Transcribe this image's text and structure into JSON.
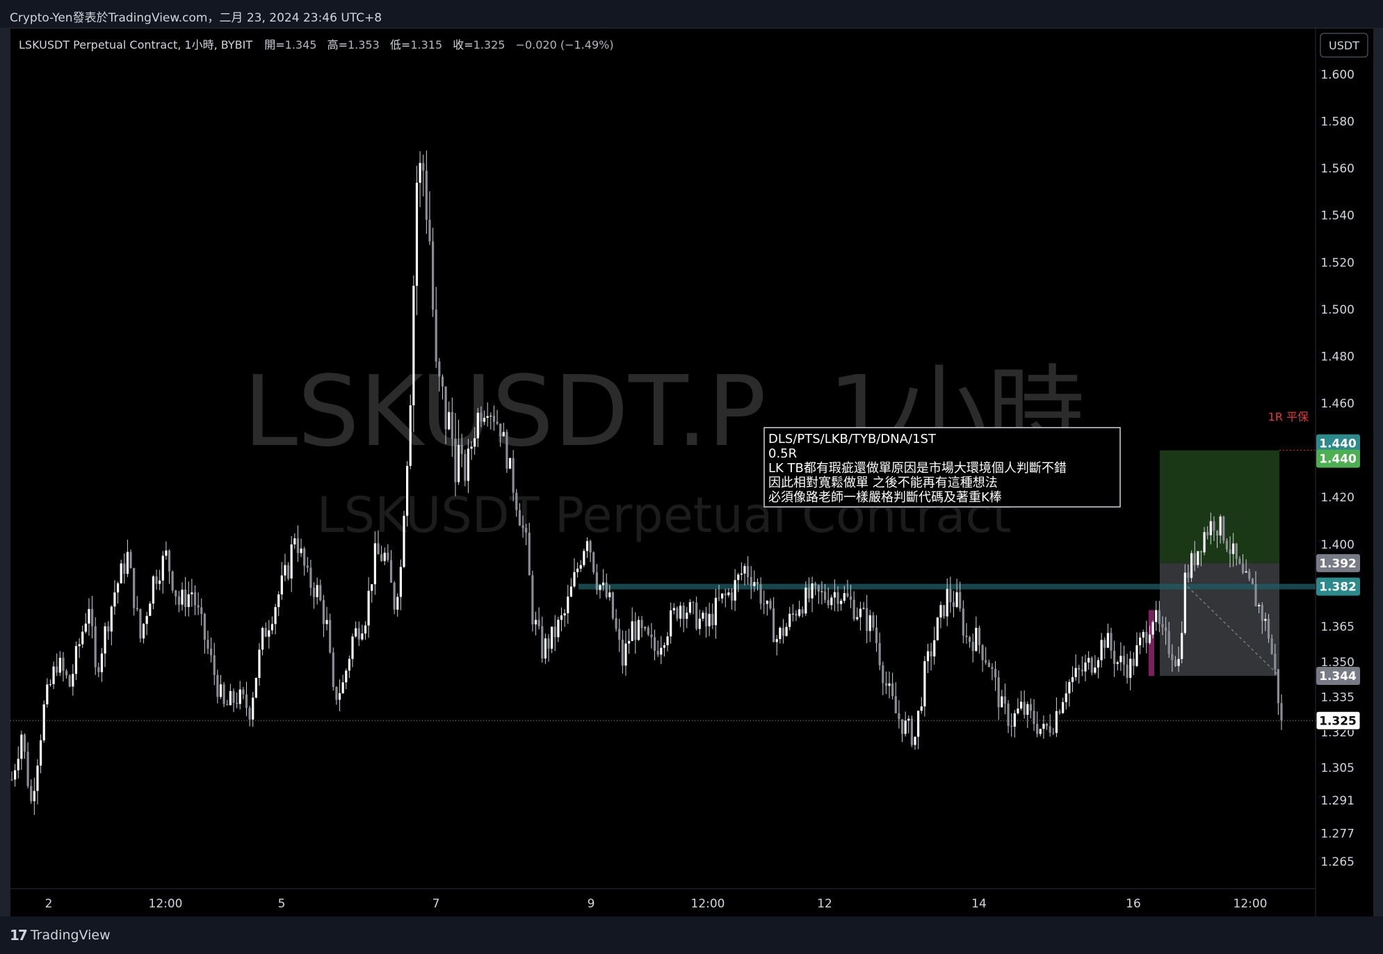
{
  "header": {
    "credit": "Crypto-Yen發表於TradingView.com，二月 23, 2024 23:46 UTC+8"
  },
  "legend": {
    "symbol": "LSKUSDT Perpetual Contract, 1小時, BYBIT",
    "open_label": "開=",
    "open": "1.345",
    "high_label": "高=",
    "high": "1.353",
    "low_label": "低=",
    "low": "1.315",
    "close_label": "收=",
    "close": "1.325",
    "change": "−0.020 (−1.49%)"
  },
  "currency_button": "USDT",
  "watermark": {
    "line1": "LSKUSDT.P, 1小時",
    "line2": "LSKUSDT Perpetual Contract"
  },
  "footer": {
    "brand": "TradingView"
  },
  "note": {
    "lines": [
      "DLS/PTS/LKB/TYB/DNA/1ST",
      "0.5R",
      "LK TB都有瑕疵還做單原因是市場大環境個人判斷不錯",
      "因此相對寬鬆做單 之後不能再有這種想法",
      "必須像路老師一樣嚴格判斷代碼及著重K棒"
    ]
  },
  "tp_label": "1R 平保",
  "colors": {
    "background": "#000000",
    "candle": "#d1d4dc",
    "profit_zone": "#1b3a17",
    "loss_zone": "#5d6068",
    "level_line": "#1f5e63",
    "tp_badge": "#4caf50",
    "level_badge": "#2a8a8c",
    "tp_text": "#e53935"
  },
  "chart_data": {
    "type": "candlestick",
    "interval": "1h",
    "x_ticks": [
      "2",
      "12:00",
      "5",
      "7",
      "9",
      "12:00",
      "12",
      "14",
      "16",
      "12:00"
    ],
    "y_ticks": [
      1.6,
      1.58,
      1.56,
      1.54,
      1.52,
      1.5,
      1.48,
      1.46,
      1.44,
      1.42,
      1.4,
      1.365,
      1.35,
      1.335,
      1.32,
      1.305,
      1.291,
      1.277,
      1.265
    ],
    "y_tick_labels": [
      "1.600",
      "1.580",
      "1.560",
      "1.540",
      "1.520",
      "1.500",
      "1.480",
      "1.460",
      "1.440",
      "1.420",
      "1.400",
      "1.365",
      "1.350",
      "1.335",
      "1.320",
      "1.305",
      "1.291",
      "1.277",
      "1.265"
    ],
    "y_range": [
      1.255,
      1.61
    ],
    "last_price": 1.325,
    "price_labels": [
      {
        "value": 1.44,
        "label": "1.440",
        "style": "teal"
      },
      {
        "value": 1.44,
        "label": "1.440",
        "style": "green"
      },
      {
        "value": 1.392,
        "label": "1.392",
        "style": "gray"
      },
      {
        "value": 1.382,
        "label": "1.382",
        "style": "teal"
      },
      {
        "value": 1.344,
        "label": "1.344",
        "style": "gray"
      },
      {
        "value": 1.325,
        "label": "1.325",
        "style": "last"
      }
    ],
    "horizontal_level": 1.382,
    "position": {
      "entry": 1.392,
      "take_profit": 1.44,
      "stop": 1.344,
      "side": "long"
    },
    "path": [
      [
        0,
        1.3
      ],
      [
        3,
        1.32
      ],
      [
        6,
        1.29
      ],
      [
        10,
        1.33
      ],
      [
        14,
        1.35
      ],
      [
        18,
        1.34
      ],
      [
        24,
        1.375
      ],
      [
        26,
        1.345
      ],
      [
        32,
        1.38
      ],
      [
        36,
        1.395
      ],
      [
        40,
        1.36
      ],
      [
        44,
        1.385
      ],
      [
        48,
        1.395
      ],
      [
        52,
        1.375
      ],
      [
        56,
        1.38
      ],
      [
        60,
        1.36
      ],
      [
        64,
        1.34
      ],
      [
        66,
        1.33
      ],
      [
        70,
        1.335
      ],
      [
        74,
        1.33
      ],
      [
        78,
        1.36
      ],
      [
        82,
        1.375
      ],
      [
        86,
        1.39
      ],
      [
        88,
        1.405
      ],
      [
        92,
        1.385
      ],
      [
        95,
        1.38
      ],
      [
        98,
        1.365
      ],
      [
        100,
        1.335
      ],
      [
        103,
        1.34
      ],
      [
        106,
        1.36
      ],
      [
        110,
        1.37
      ],
      [
        113,
        1.395
      ],
      [
        116,
        1.395
      ],
      [
        119,
        1.375
      ],
      [
        121,
        1.39
      ],
      [
        124,
        1.47
      ],
      [
        126,
        1.555
      ],
      [
        128,
        1.56
      ],
      [
        130,
        1.53
      ],
      [
        132,
        1.47
      ],
      [
        135,
        1.455
      ],
      [
        138,
        1.44
      ],
      [
        141,
        1.43
      ],
      [
        145,
        1.455
      ],
      [
        148,
        1.46
      ],
      [
        152,
        1.45
      ],
      [
        156,
        1.425
      ],
      [
        160,
        1.4
      ],
      [
        162,
        1.37
      ],
      [
        165,
        1.355
      ],
      [
        168,
        1.36
      ],
      [
        172,
        1.37
      ],
      [
        176,
        1.39
      ],
      [
        179,
        1.405
      ],
      [
        182,
        1.385
      ],
      [
        186,
        1.375
      ],
      [
        190,
        1.35
      ],
      [
        193,
        1.365
      ],
      [
        197,
        1.36
      ],
      [
        200,
        1.355
      ],
      [
        204,
        1.365
      ],
      [
        208,
        1.375
      ],
      [
        212,
        1.37
      ],
      [
        216,
        1.365
      ],
      [
        220,
        1.375
      ],
      [
        224,
        1.38
      ],
      [
        228,
        1.39
      ],
      [
        231,
        1.385
      ],
      [
        234,
        1.375
      ],
      [
        238,
        1.36
      ],
      [
        241,
        1.365
      ],
      [
        245,
        1.375
      ],
      [
        249,
        1.378
      ],
      [
        253,
        1.378
      ],
      [
        257,
        1.38
      ],
      [
        261,
        1.375
      ],
      [
        264,
        1.37
      ],
      [
        268,
        1.365
      ],
      [
        272,
        1.34
      ],
      [
        275,
        1.328
      ],
      [
        278,
        1.322
      ],
      [
        281,
        1.318
      ],
      [
        284,
        1.345
      ],
      [
        288,
        1.365
      ],
      [
        291,
        1.378
      ],
      [
        294,
        1.375
      ],
      [
        297,
        1.36
      ],
      [
        300,
        1.36
      ],
      [
        304,
        1.35
      ],
      [
        308,
        1.33
      ],
      [
        311,
        1.325
      ],
      [
        314,
        1.33
      ],
      [
        318,
        1.325
      ],
      [
        321,
        1.32
      ],
      [
        324,
        1.325
      ],
      [
        328,
        1.34
      ],
      [
        332,
        1.345
      ],
      [
        336,
        1.35
      ],
      [
        340,
        1.36
      ],
      [
        344,
        1.35
      ],
      [
        348,
        1.348
      ],
      [
        352,
        1.36
      ],
      [
        355,
        1.37
      ],
      [
        358,
        1.36
      ],
      [
        361,
        1.355
      ],
      [
        363,
        1.35
      ],
      [
        365,
        1.385
      ],
      [
        368,
        1.395
      ],
      [
        371,
        1.405
      ],
      [
        374,
        1.41
      ],
      [
        377,
        1.405
      ],
      [
        380,
        1.395
      ],
      [
        383,
        1.385
      ],
      [
        386,
        1.38
      ],
      [
        389,
        1.37
      ],
      [
        391,
        1.362
      ],
      [
        393,
        1.345
      ],
      [
        395,
        1.325
      ]
    ]
  }
}
